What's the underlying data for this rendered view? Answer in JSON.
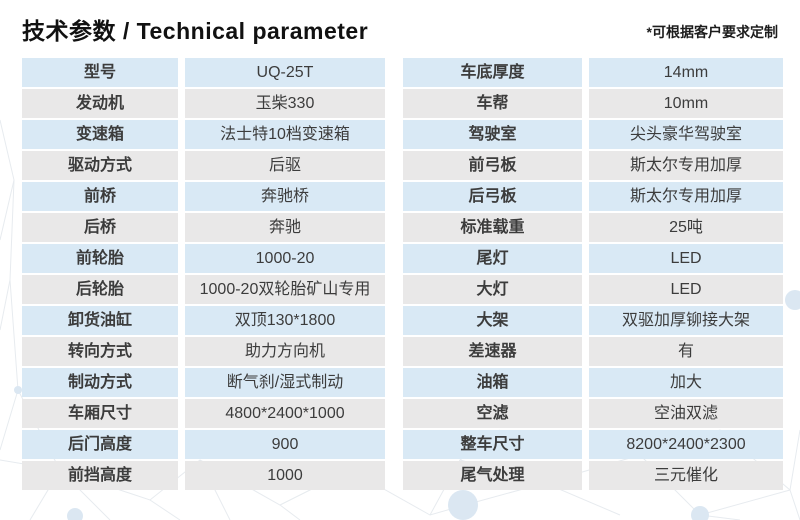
{
  "header": {
    "title": "技术参数 / Technical parameter",
    "note": "*可根据客户要求定制"
  },
  "colors": {
    "row_blue": "#d9e9f5",
    "row_gray": "#e9e8e8",
    "text": "#3c3c3c",
    "pattern_line": "#e7ebef",
    "pattern_dot": "#dbe7f2"
  },
  "tables": [
    {
      "name": "left-spec-table",
      "rows": [
        {
          "label": "型号",
          "value": "UQ-25T"
        },
        {
          "label": "发动机",
          "value": "玉柴330"
        },
        {
          "label": "变速箱",
          "value": "法士特10档变速箱"
        },
        {
          "label": "驱动方式",
          "value": "后驱"
        },
        {
          "label": "前桥",
          "value": "奔驰桥"
        },
        {
          "label": "后桥",
          "value": "奔驰"
        },
        {
          "label": "前轮胎",
          "value": "1000-20"
        },
        {
          "label": "后轮胎",
          "value": "1000-20双轮胎矿山专用"
        },
        {
          "label": "卸货油缸",
          "value": "双顶130*1800"
        },
        {
          "label": "转向方式",
          "value": "助力方向机"
        },
        {
          "label": "制动方式",
          "value": "断气刹/湿式制动"
        },
        {
          "label": "车厢尺寸",
          "value": "4800*2400*1000"
        },
        {
          "label": "后门高度",
          "value": "900"
        },
        {
          "label": "前挡高度",
          "value": "1000"
        }
      ]
    },
    {
      "name": "right-spec-table",
      "rows": [
        {
          "label": "车底厚度",
          "value": "14mm"
        },
        {
          "label": "车帮",
          "value": "10mm"
        },
        {
          "label": "驾驶室",
          "value": "尖头豪华驾驶室"
        },
        {
          "label": "前弓板",
          "value": "斯太尔专用加厚"
        },
        {
          "label": "后弓板",
          "value": "斯太尔专用加厚"
        },
        {
          "label": "标准载重",
          "value": "25吨"
        },
        {
          "label": "尾灯",
          "value": "LED"
        },
        {
          "label": "大灯",
          "value": "LED"
        },
        {
          "label": "大架",
          "value": "双驱加厚铆接大架"
        },
        {
          "label": "差速器",
          "value": "有"
        },
        {
          "label": "油箱",
          "value": "加大"
        },
        {
          "label": "空滤",
          "value": "空油双滤"
        },
        {
          "label": "整车尺寸",
          "value": "8200*2400*2300"
        },
        {
          "label": "尾气处理",
          "value": "三元催化"
        }
      ]
    }
  ]
}
